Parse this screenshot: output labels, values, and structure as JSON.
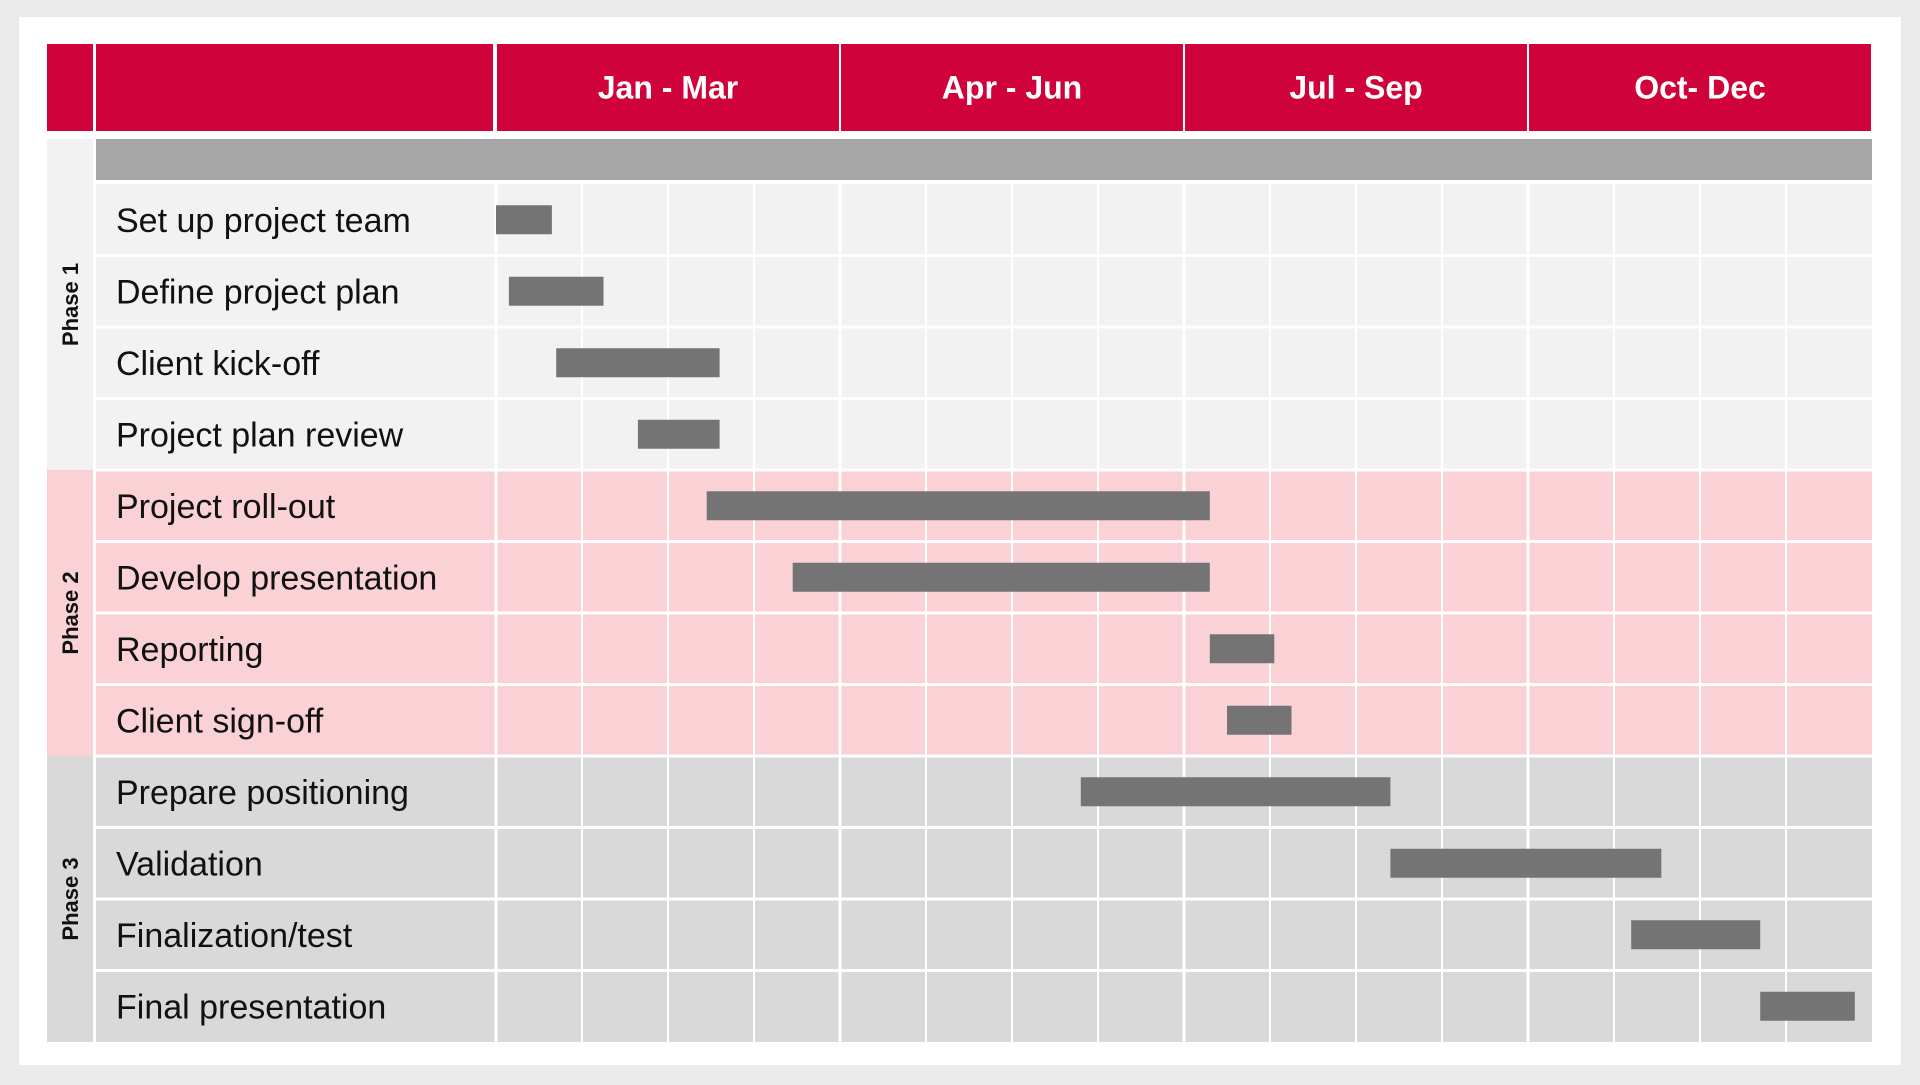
{
  "chart_data": {
    "type": "gantt",
    "x_unit": "month",
    "x_range": [
      0,
      12
    ],
    "grid": true,
    "periods": [
      "Jan - Mar",
      "Apr - Jun",
      "Jul - Sep",
      "Oct- Dec"
    ],
    "phases": [
      {
        "label": "Phase 1",
        "tasks": [
          {
            "name": "Set up project team",
            "start": 0.0,
            "end": 0.65
          },
          {
            "name": "Define project plan",
            "start": 0.15,
            "end": 1.25
          },
          {
            "name": "Client kick-off",
            "start": 0.7,
            "end": 2.6
          },
          {
            "name": "Project plan review",
            "start": 1.65,
            "end": 2.6
          }
        ]
      },
      {
        "label": "Phase 2",
        "tasks": [
          {
            "name": "Project roll-out",
            "start": 2.45,
            "end": 8.3
          },
          {
            "name": "Develop presentation",
            "start": 3.45,
            "end": 8.3
          },
          {
            "name": "Reporting",
            "start": 8.3,
            "end": 9.05
          },
          {
            "name": "Client sign-off",
            "start": 8.5,
            "end": 9.25
          }
        ]
      },
      {
        "label": "Phase 3",
        "tasks": [
          {
            "name": "Prepare positioning",
            "start": 6.8,
            "end": 10.4
          },
          {
            "name": "Validation",
            "start": 10.4,
            "end": 13.55
          },
          {
            "name": "Finalization/test",
            "start": 13.2,
            "end": 14.7
          },
          {
            "name": "Final presentation",
            "start": 14.7,
            "end": 15.8
          }
        ]
      }
    ],
    "colors": {
      "header": "#d0023c",
      "bar": "#747474",
      "phase_backgrounds": [
        "#f2f2f2",
        "#fad2d6",
        "#d9d9d9"
      ],
      "phase_band": "#a6a6a6"
    }
  }
}
